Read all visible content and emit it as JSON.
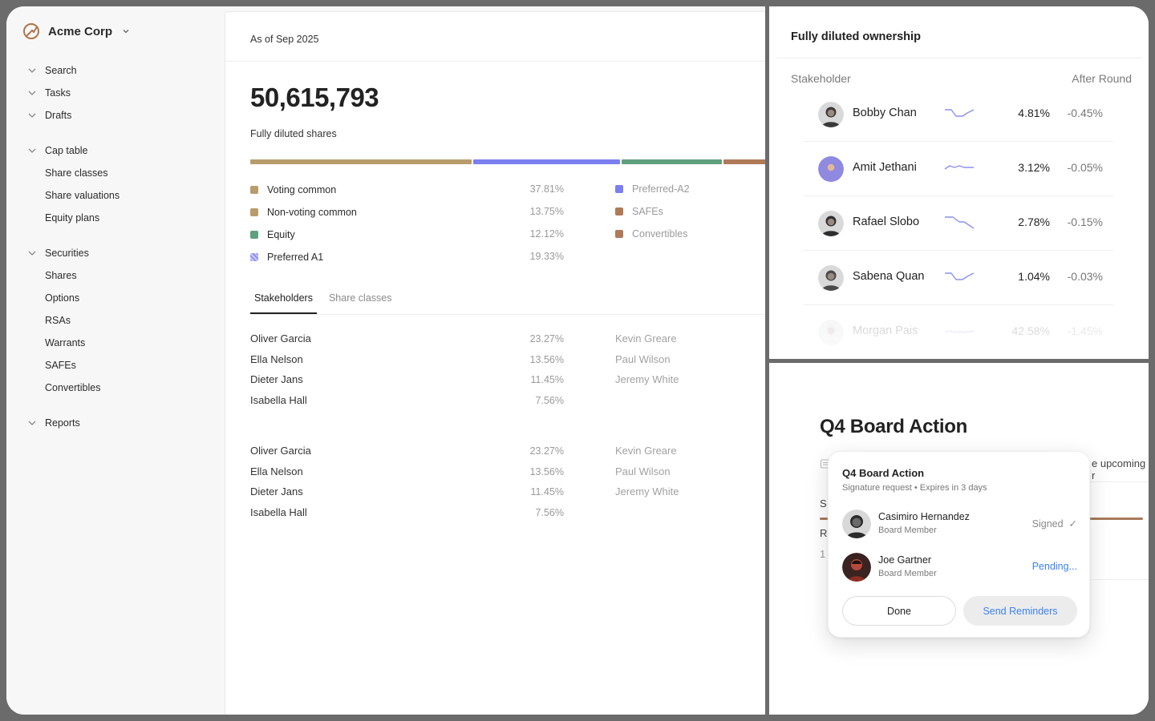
{
  "sidebar": {
    "brand": "Acme Corp",
    "groups": [
      {
        "label": "Search",
        "children": []
      },
      {
        "label": "Tasks",
        "children": []
      },
      {
        "label": "Drafts",
        "children": []
      }
    ],
    "cap_table": {
      "label": "Cap table",
      "children": [
        "Share classes",
        "Share valuations",
        "Equity plans"
      ]
    },
    "securities": {
      "label": "Securities",
      "children": [
        "Shares",
        "Options",
        "RSAs",
        "Warrants",
        "SAFEs",
        "Convertibles"
      ]
    },
    "reports": {
      "label": "Reports"
    }
  },
  "main": {
    "as_of": "As of Sep 2025",
    "total_shares": "50,615,793",
    "total_label": "Fully diluted shares",
    "distribution": [
      {
        "label": "Voting common",
        "value": "37.81%",
        "fraction": 0.3781,
        "color": "#b89c6c"
      },
      {
        "label": "Non-voting common",
        "value": "13.75%",
        "fraction": 0.1375,
        "color": "#b89c6c"
      },
      {
        "label": "Equity",
        "value": "12.12%",
        "fraction": 0.1212,
        "color": "#5e9f7d"
      },
      {
        "label": "Preferred A1",
        "value": "19.33%",
        "fraction": 0.1933,
        "color": "#8c8ff0"
      }
    ],
    "bar_segments": [
      {
        "fraction": 0.43,
        "color": "#b89c6c"
      },
      {
        "fraction": 0.285,
        "color": "#7b7ff0"
      },
      {
        "fraction": 0.195,
        "color": "#5e9f7d"
      },
      {
        "fraction": 0.09,
        "color": "#b07a58"
      }
    ],
    "legend_right": [
      {
        "label": "Preferred-A2",
        "color": "#7b7ff0"
      },
      {
        "label": "SAFEs",
        "color": "#b07a58"
      },
      {
        "label": "Convertibles",
        "color": "#b07a58"
      }
    ],
    "tabs": [
      "Stakeholders",
      "Share classes"
    ],
    "stakeholders_block1": [
      {
        "name": "Oliver Garcia",
        "value": "23.27%",
        "right": "Kevin Greare"
      },
      {
        "name": "Ella Nelson",
        "value": "13.56%",
        "right": "Paul Wilson"
      },
      {
        "name": "Dieter Jans",
        "value": "11.45%",
        "right": "Jeremy White"
      },
      {
        "name": "Isabella Hall",
        "value": "7.56%",
        "right": ""
      }
    ],
    "stakeholders_block2": [
      {
        "name": "Oliver Garcia",
        "value": "23.27%",
        "right": "Kevin Greare"
      },
      {
        "name": "Ella Nelson",
        "value": "13.56%",
        "right": "Paul Wilson"
      },
      {
        "name": "Dieter Jans",
        "value": "11.45%",
        "right": "Jeremy White"
      },
      {
        "name": "Isabella Hall",
        "value": "7.56%",
        "right": ""
      }
    ]
  },
  "ownership": {
    "title": "Fully diluted ownership",
    "col_stakeholder": "Stakeholder",
    "col_after": "After Round",
    "rows": [
      {
        "name": "Bobby Chan",
        "pct": "4.81%",
        "change": "-0.45%",
        "avatar_color": "#3a3a3a"
      },
      {
        "name": "Amit Jethani",
        "pct": "3.12%",
        "change": "-0.05%",
        "avatar_color": "#8f89e0"
      },
      {
        "name": "Rafael Slobo",
        "pct": "2.78%",
        "change": "-0.15%",
        "avatar_color": "#2e2e2e"
      },
      {
        "name": "Sabena Quan",
        "pct": "1.04%",
        "change": "-0.03%",
        "avatar_color": "#4a4a4a"
      },
      {
        "name": "Morgan Pais",
        "pct": "42.58%",
        "change": "-1.45%",
        "avatar_color": "#c9c9c9"
      }
    ]
  },
  "board": {
    "title": "Q4 Board Action",
    "bg_text": "e upcoming r",
    "card": {
      "title": "Q4 Board Action",
      "subtitle": "Signature request • Expires in 3 days",
      "people": [
        {
          "name": "Casimiro Hernandez",
          "role": "Board Member",
          "status": "Signed",
          "check": "✓"
        },
        {
          "name": "Joe Gartner",
          "role": "Board Member",
          "status": "Pending..."
        }
      ],
      "done_label": "Done",
      "remind_label": "Send Reminders"
    }
  }
}
